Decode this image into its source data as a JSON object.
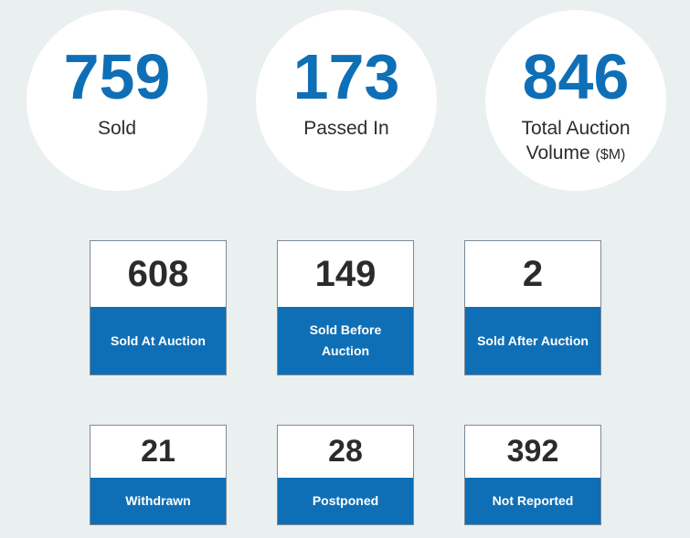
{
  "summary": [
    {
      "value": "759",
      "label": "Sold",
      "unit": ""
    },
    {
      "value": "173",
      "label": "Passed In",
      "unit": ""
    },
    {
      "value": "846",
      "label_line1": "Total Auction",
      "label_line2": "Volume",
      "unit": "($M)"
    }
  ],
  "sold_breakdown": [
    {
      "value": "608",
      "label": "Sold At Auction"
    },
    {
      "value": "149",
      "label": "Sold Before Auction"
    },
    {
      "value": "2",
      "label": "Sold After Auction"
    }
  ],
  "other_outcomes": [
    {
      "value": "21",
      "label": "Withdrawn"
    },
    {
      "value": "28",
      "label": "Postponed"
    },
    {
      "value": "392",
      "label": "Not Reported"
    }
  ],
  "colors": {
    "accent": "#0f6fb6",
    "background": "#eaeff0",
    "text": "#2d2d2d"
  }
}
